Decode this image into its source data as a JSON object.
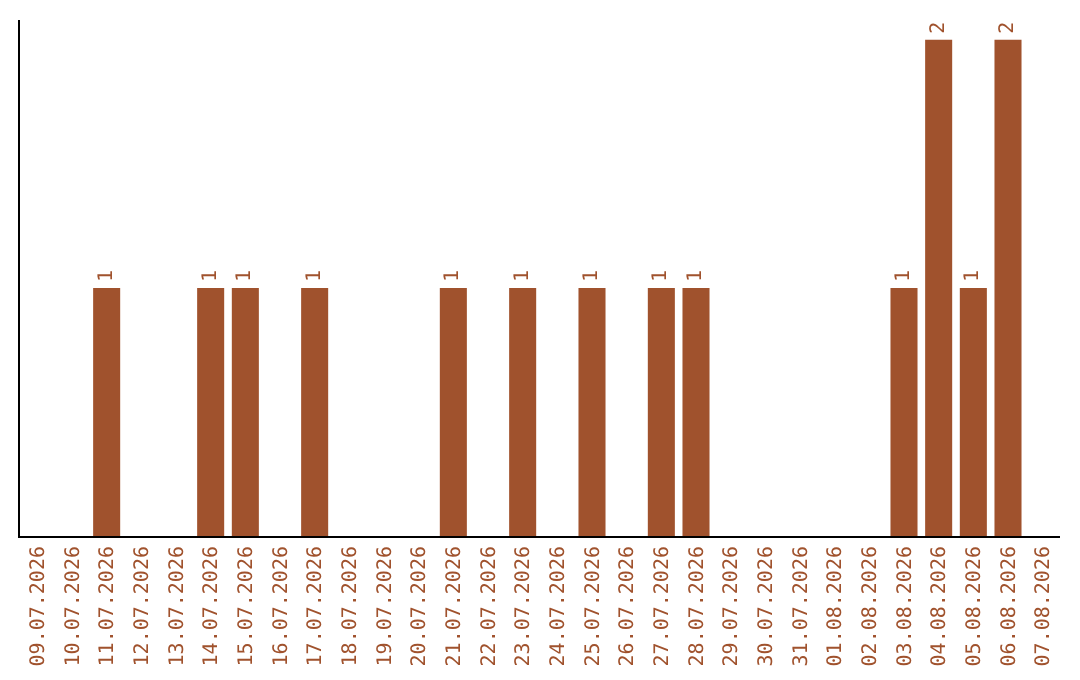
{
  "chart_data": {
    "type": "bar",
    "categories": [
      "09.07.2026",
      "10.07.2026",
      "11.07.2026",
      "12.07.2026",
      "13.07.2026",
      "14.07.2026",
      "15.07.2026",
      "16.07.2026",
      "17.07.2026",
      "18.07.2026",
      "19.07.2026",
      "20.07.2026",
      "21.07.2026",
      "22.07.2026",
      "23.07.2026",
      "24.07.2026",
      "25.07.2026",
      "26.07.2026",
      "27.07.2026",
      "28.07.2026",
      "29.07.2026",
      "30.07.2026",
      "31.07.2026",
      "01.08.2026",
      "02.08.2026",
      "03.08.2026",
      "04.08.2026",
      "05.08.2026",
      "06.08.2026",
      "07.08.2026"
    ],
    "values": [
      0,
      0,
      1,
      0,
      0,
      1,
      1,
      0,
      1,
      0,
      0,
      0,
      1,
      0,
      1,
      0,
      1,
      0,
      1,
      1,
      0,
      0,
      0,
      0,
      0,
      1,
      2,
      1,
      2,
      0
    ],
    "value_labels": [
      null,
      null,
      "1",
      null,
      null,
      "1",
      "1",
      null,
      "1",
      null,
      null,
      null,
      "1",
      null,
      "1",
      null,
      "1",
      null,
      "1",
      "1",
      null,
      null,
      null,
      null,
      null,
      "1",
      "2",
      "1",
      "2",
      null
    ],
    "color": "#a0522d",
    "ylim": [
      0,
      2.08
    ],
    "tick_labels": "x"
  }
}
